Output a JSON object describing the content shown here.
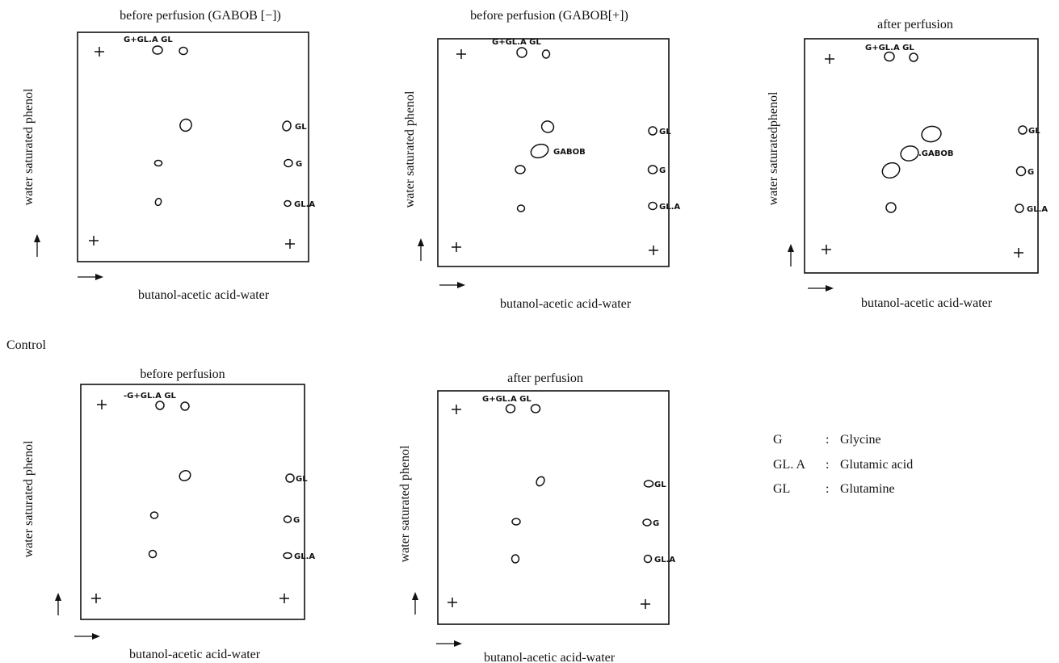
{
  "section_label": "Control",
  "legend": [
    {
      "abbr": "G",
      "sep": ":",
      "name": "Glycine"
    },
    {
      "abbr": "GL. A",
      "sep": ":",
      "name": "Glutamic acid"
    },
    {
      "abbr": "GL",
      "sep": ":",
      "name": "Glutamine"
    }
  ],
  "panels": [
    {
      "title": "before perfusion (GABOB [−])",
      "ylabel": "water saturated phenol",
      "xlabel": "butanol-acetic acid-water",
      "top_label": "G+GL.A GL",
      "side_labels": [
        "GL",
        "G",
        "GL.A"
      ]
    },
    {
      "title": "before perfusion (GABOB[+])",
      "ylabel": "water saturated phenol",
      "xlabel": "butanol-acetic acid-water",
      "top_label": "G+GL.A GL",
      "side_labels": [
        "GL",
        "G",
        "GL.A"
      ],
      "spot_label": "GABOB"
    },
    {
      "title": "after perfusion",
      "ylabel": "water saturatedphenol",
      "xlabel": "butanol-acetic acid-water",
      "top_label": "G+GL.A GL",
      "side_labels": [
        "GL",
        "G",
        "GL.A"
      ],
      "spot_label": ".GABOB"
    },
    {
      "title": "before perfusion",
      "ylabel": "water saturated phenol",
      "xlabel": "butanol-acetic acid-water",
      "top_label": "-G+GL.A GL",
      "side_labels": [
        "GL",
        "G",
        "GL.A"
      ]
    },
    {
      "title": "after perfusion",
      "ylabel": "water saturated phenol",
      "xlabel": "butanol-acetic acid-water",
      "top_label": "G+GL.A GL",
      "side_labels": [
        "GL",
        "G",
        "GL.A"
      ]
    }
  ]
}
